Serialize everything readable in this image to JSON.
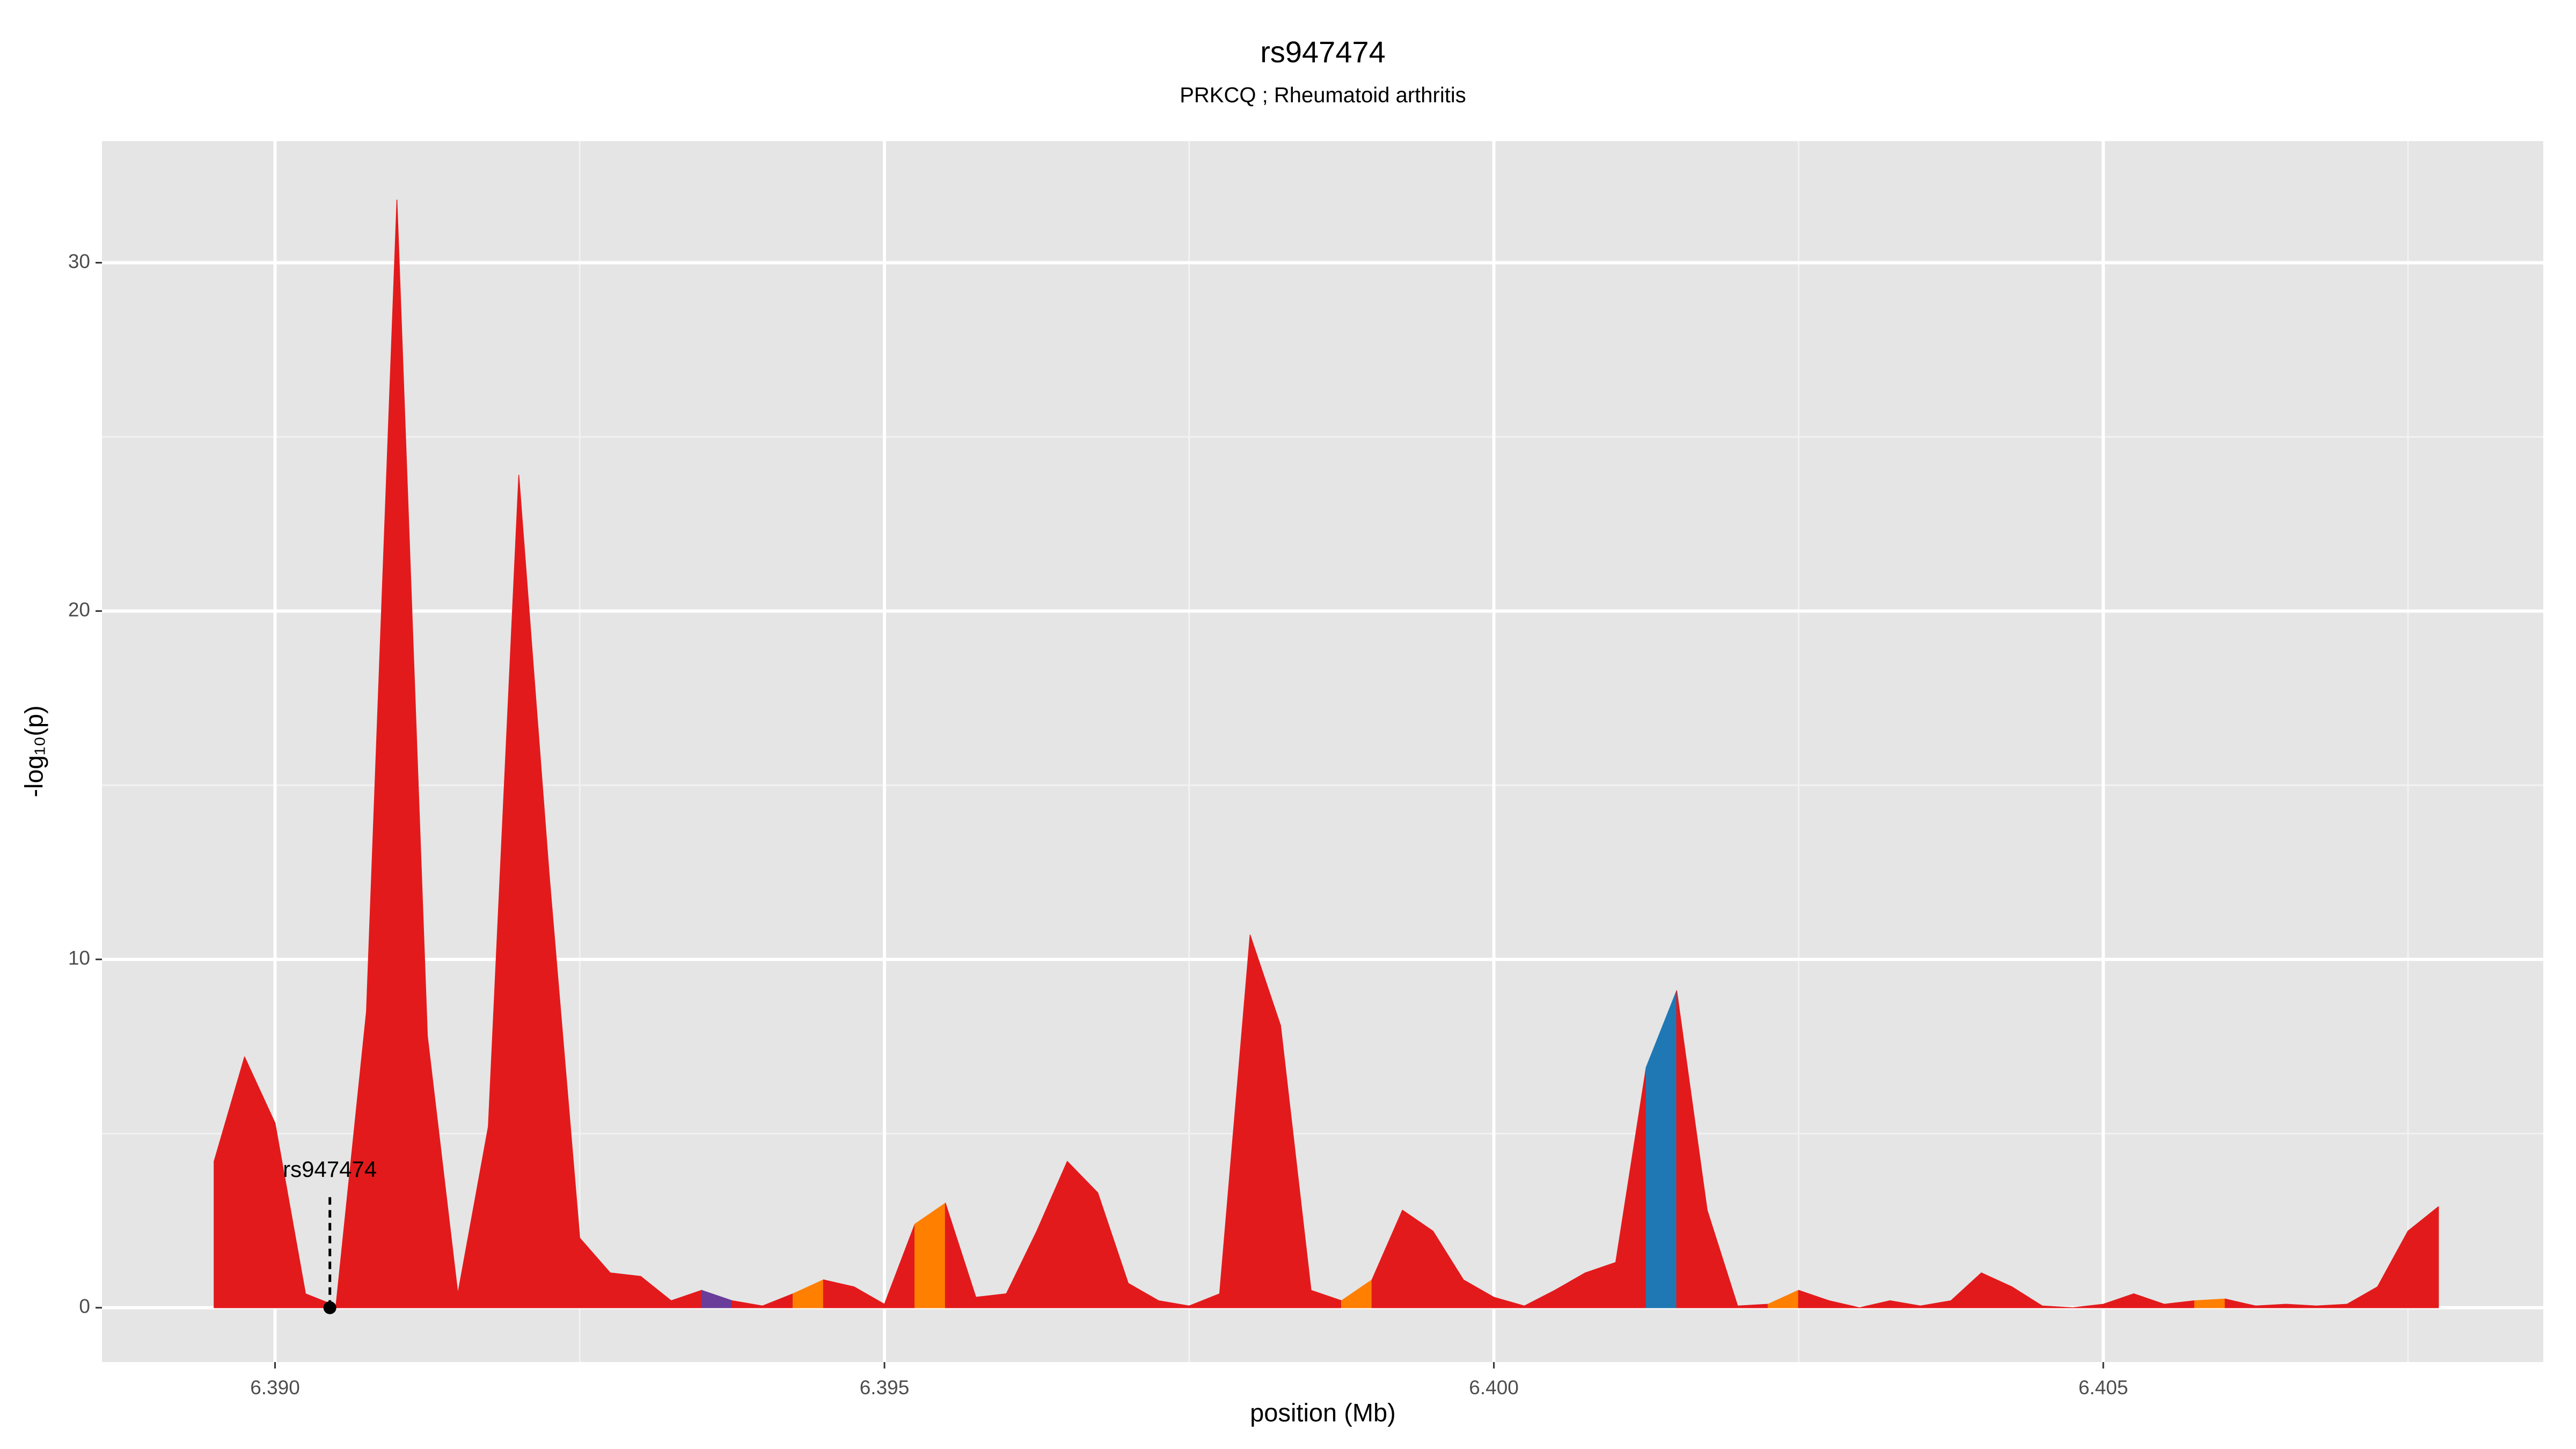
{
  "chart_data": {
    "type": "area",
    "title": "rs947474",
    "subtitle": "PRKCQ ; Rheumatoid arthritis",
    "xlabel": "position (Mb)",
    "ylabel": "-log₁₀(p)",
    "x": [
      6.3895,
      6.38975,
      6.39,
      6.39025,
      6.3905,
      6.39075,
      6.391,
      6.39125,
      6.3915,
      6.39175,
      6.392,
      6.39225,
      6.3925,
      6.39275,
      6.393,
      6.39325,
      6.3935,
      6.39375,
      6.394,
      6.39425,
      6.3945,
      6.39475,
      6.395,
      6.39525,
      6.3955,
      6.39575,
      6.396,
      6.39625,
      6.3965,
      6.39675,
      6.397,
      6.39725,
      6.3975,
      6.39775,
      6.398,
      6.39825,
      6.3985,
      6.39875,
      6.399,
      6.39925,
      6.3995,
      6.39975,
      6.4,
      6.40025,
      6.4005,
      6.40075,
      6.401,
      6.40125,
      6.4015,
      6.40175,
      6.402,
      6.40225,
      6.4025,
      6.40275,
      6.403,
      6.40325,
      6.4035,
      6.40375,
      6.404,
      6.40425,
      6.4045,
      6.40475,
      6.405,
      6.40525,
      6.4055,
      6.40575,
      6.406,
      6.40625,
      6.4065,
      6.40675,
      6.407,
      6.40725,
      6.4075,
      6.40775
    ],
    "values": [
      4.2,
      7.2,
      5.3,
      0.4,
      0.05,
      8.5,
      31.8,
      7.8,
      0.4,
      5.2,
      23.9,
      12.4,
      2.0,
      1.0,
      0.9,
      0.2,
      0.5,
      0.2,
      0.05,
      0.4,
      0.8,
      0.6,
      0.1,
      2.4,
      3.0,
      0.3,
      0.4,
      2.2,
      4.2,
      3.3,
      0.7,
      0.2,
      0.05,
      0.4,
      10.7,
      8.1,
      0.5,
      0.2,
      0.8,
      2.8,
      2.2,
      0.8,
      0.3,
      0.05,
      0.5,
      1.0,
      1.3,
      6.9,
      9.1,
      2.8,
      0.05,
      0.1,
      0.5,
      0.2,
      0,
      0.2,
      0.05,
      0.2,
      1.0,
      0.6,
      0.05,
      0,
      0.1,
      0.4,
      0.1,
      0.2,
      0.25,
      0.05,
      0.1,
      0.05,
      0.1,
      0.6,
      2.2,
      2.9
    ],
    "colors": [
      "#e31a1c",
      "#e31a1c",
      "#e31a1c",
      "#e31a1c",
      "#e31a1c",
      "#e31a1c",
      "#e31a1c",
      "#e31a1c",
      "#e31a1c",
      "#e31a1c",
      "#e31a1c",
      "#e31a1c",
      "#e31a1c",
      "#e31a1c",
      "#e31a1c",
      "#e31a1c",
      "#6a3d9a",
      "#e31a1c",
      "#e31a1c",
      "#ff7f00",
      "#e31a1c",
      "#e31a1c",
      "#e31a1c",
      "#ff7f00",
      "#e31a1c",
      "#e31a1c",
      "#e31a1c",
      "#e31a1c",
      "#e31a1c",
      "#e31a1c",
      "#e31a1c",
      "#e31a1c",
      "#e31a1c",
      "#e31a1c",
      "#e31a1c",
      "#e31a1c",
      "#e31a1c",
      "#ff7f00",
      "#e31a1c",
      "#e31a1c",
      "#e31a1c",
      "#e31a1c",
      "#e31a1c",
      "#e31a1c",
      "#e31a1c",
      "#e31a1c",
      "#e31a1c",
      "#1f78b4",
      "#e31a1c",
      "#e31a1c",
      "#e31a1c",
      "#ff7f00",
      "#e31a1c",
      "#e31a1c",
      "#e31a1c",
      "#e31a1c",
      "#e31a1c",
      "#e31a1c",
      "#e31a1c",
      "#e31a1c",
      "#e31a1c",
      "#e31a1c",
      "#e31a1c",
      "#e31a1c",
      "#e31a1c",
      "#ff7f00",
      "#e31a1c",
      "#e31a1c",
      "#e31a1c",
      "#e31a1c",
      "#e31a1c",
      "#e31a1c",
      "#e31a1c",
      "#e31a1c"
    ],
    "annotation": {
      "label": "rs947474",
      "x": 6.39045,
      "y": 0
    },
    "xlim": [
      6.38858,
      6.40861
    ],
    "ylim": [
      -1.56,
      33.49
    ],
    "xticks": [
      {
        "value": 6.39,
        "label": "6.390"
      },
      {
        "value": 6.395,
        "label": "6.395"
      },
      {
        "value": 6.4,
        "label": "6.400"
      },
      {
        "value": 6.405,
        "label": "6.405"
      }
    ],
    "yticks": [
      0,
      10,
      20,
      30
    ],
    "xminorticks": [
      6.3925,
      6.3975,
      6.4025,
      6.4075
    ],
    "yminorticks": [
      5,
      15,
      25
    ],
    "grid": true
  }
}
